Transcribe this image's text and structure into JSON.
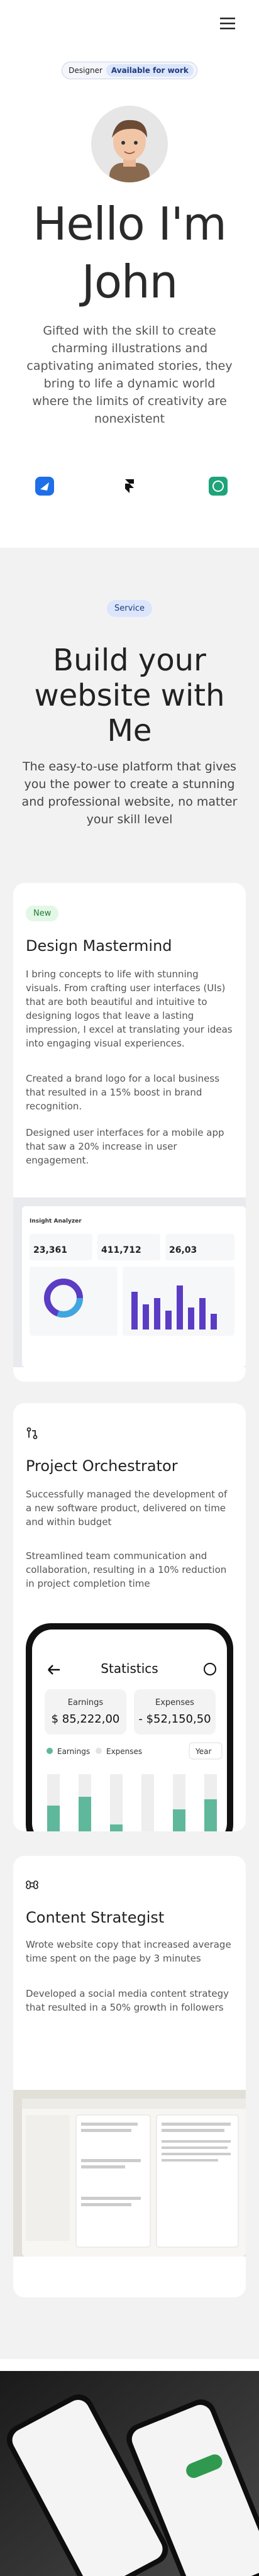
{
  "header": {
    "badge_role": "Designer",
    "badge_status": "Available for work"
  },
  "hero": {
    "title_line1": "Hello I'm",
    "title_line2": "John",
    "text": "Gifted with the skill to create charming illustrations and captivating animated stories, they bring to life a dynamic world where the limits of creativity are nonexistent"
  },
  "services": {
    "badge": "Service",
    "title": "Build your website with Me",
    "text": "The easy-to-use platform that gives you the power to create a stunning and professional website, no matter your skill level",
    "cards": [
      {
        "tag": "New",
        "title": "Design Mastermind",
        "paragraphs": [
          "I bring concepts to life with stunning visuals. From crafting user interfaces (UIs) that are both beautiful and intuitive to designing logos that leave a lasting impression, I excel at translating your ideas into engaging visual experiences.",
          "Created a brand logo for a local business that resulted in a 15% boost in brand recognition.",
          "Designed user interfaces for a mobile app that saw a 20% increase in user engagement."
        ],
        "preview": {
          "title": "Insight Analyzer",
          "stat1": "23,361",
          "stat2": "411,712",
          "stat3": "26,03"
        }
      },
      {
        "title": "Project Orchestrator",
        "paragraphs": [
          "Successfully managed the development of a new software product, delivered on time and within budget",
          "Streamlined team communication and collaboration, resulting in a 10% reduction in project completion time"
        ],
        "preview": {
          "title": "Statistics",
          "earnings_label": "Earnings",
          "earnings": "$ 85,222,00",
          "expenses_label": "Expenses",
          "expenses": "- $52,150,50",
          "legend1": "Earnings",
          "legend2": "Expenses",
          "period": "Year"
        }
      },
      {
        "title": "Content Strategist",
        "paragraphs": [
          "Wrote website copy that increased average time spent on the page by 3 minutes",
          "Developed a social media content strategy that resulted in a 50% growth in followers"
        ]
      }
    ]
  }
}
